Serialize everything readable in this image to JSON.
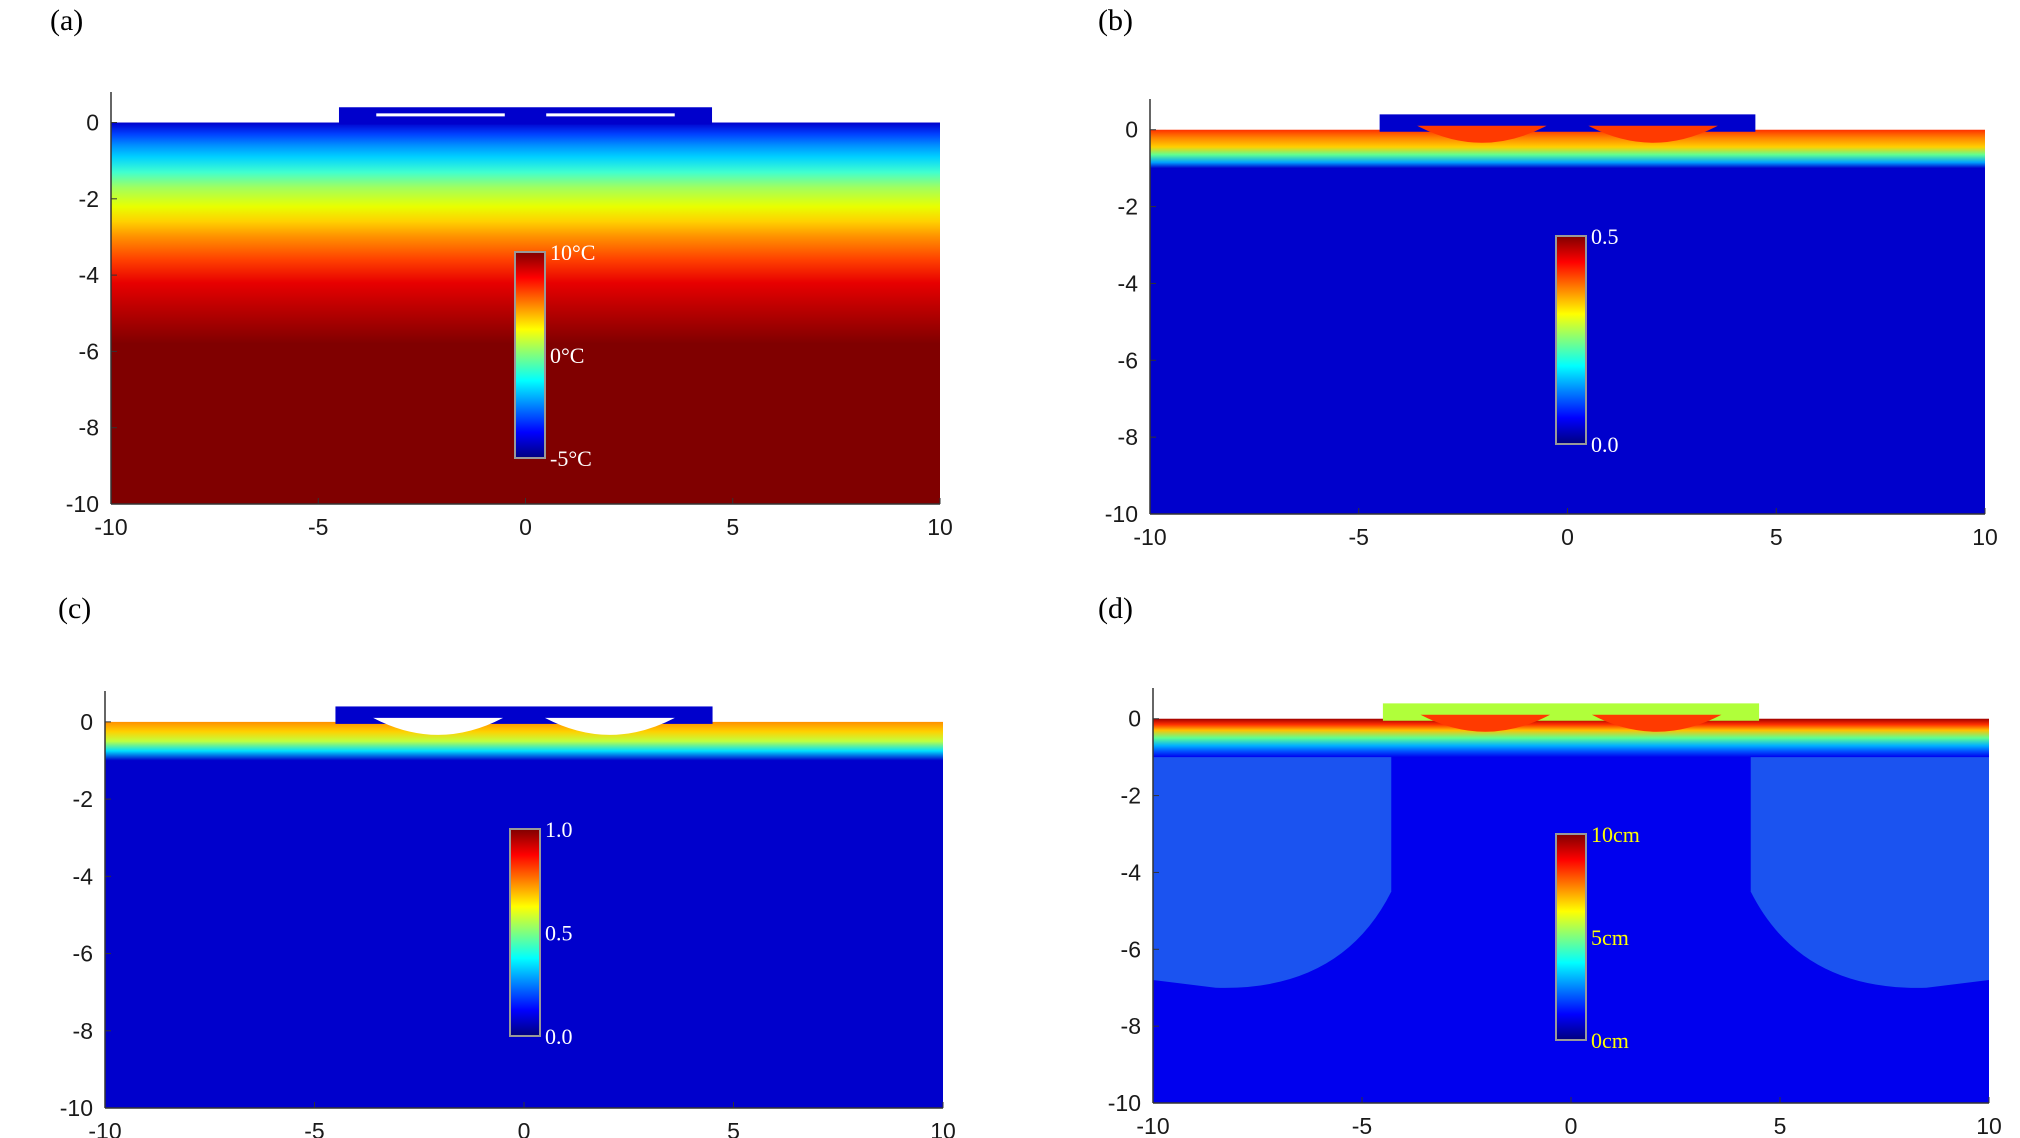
{
  "chart_data": [
    {
      "type": "heatmap",
      "panel_label": "(a)",
      "xlim": [
        -10,
        10
      ],
      "ylim": [
        -10,
        0.8
      ],
      "xticks": [
        "-10",
        "-5",
        "0",
        "5",
        "10"
      ],
      "yticks": [
        "0",
        "-2",
        "-4",
        "-6",
        "-8",
        "-10"
      ],
      "field_bands": [
        {
          "depth": 0.0,
          "color": "#0000cc"
        },
        {
          "depth": 0.3,
          "color": "#0040ff"
        },
        {
          "depth": 0.6,
          "color": "#0090ff"
        },
        {
          "depth": 0.9,
          "color": "#00d0ff"
        },
        {
          "depth": 1.3,
          "color": "#40ffd0"
        },
        {
          "depth": 1.7,
          "color": "#a0ff60"
        },
        {
          "depth": 2.2,
          "color": "#e8ff00"
        },
        {
          "depth": 2.6,
          "color": "#ffd000"
        },
        {
          "depth": 3.0,
          "color": "#ff9000"
        },
        {
          "depth": 3.6,
          "color": "#ff4000"
        },
        {
          "depth": 4.2,
          "color": "#e80000"
        },
        {
          "depth": 4.8,
          "color": "#c00000"
        },
        {
          "depth": 5.8,
          "color": "#800000"
        }
      ],
      "structure": {
        "x_range": [
          -4.5,
          4.5
        ],
        "top": 0.4,
        "color": "#0000cc",
        "openings": "lines"
      },
      "colorbar": {
        "labels": [
          "10°C",
          "0°C",
          "-5°C"
        ],
        "label_color": "#ffffff"
      }
    },
    {
      "type": "heatmap",
      "panel_label": "(b)",
      "xlim": [
        -10,
        10
      ],
      "ylim": [
        -10,
        0.8
      ],
      "xticks": [
        "-10",
        "-5",
        "0",
        "5",
        "10"
      ],
      "yticks": [
        "0",
        "-2",
        "-4",
        "-6",
        "-8",
        "-10"
      ],
      "field_bands": [
        {
          "depth": 0.0,
          "color": "#ff3000"
        },
        {
          "depth": 0.2,
          "color": "#ff8000"
        },
        {
          "depth": 0.45,
          "color": "#ffd000"
        },
        {
          "depth": 0.65,
          "color": "#60ff90"
        },
        {
          "depth": 0.85,
          "color": "#00a0ff"
        },
        {
          "depth": 1.0,
          "color": "#0000cc"
        }
      ],
      "structure": {
        "x_range": [
          -4.5,
          4.5
        ],
        "top": 0.4,
        "color": "#0000cc",
        "openings": "hot"
      },
      "colorbar": {
        "labels": [
          "0.5",
          "0.0"
        ],
        "label_color": "#ffffff"
      }
    },
    {
      "type": "heatmap",
      "panel_label": "(c)",
      "xlim": [
        -10,
        10
      ],
      "ylim": [
        -10,
        0.8
      ],
      "xticks": [
        "-10",
        "-5",
        "0",
        "5",
        "10"
      ],
      "yticks": [
        "0",
        "-2",
        "-4",
        "-6",
        "-8",
        "-10"
      ],
      "field_bands": [
        {
          "depth": 0.0,
          "color": "#ff9000"
        },
        {
          "depth": 0.25,
          "color": "#ffd000"
        },
        {
          "depth": 0.5,
          "color": "#c0ff40"
        },
        {
          "depth": 0.75,
          "color": "#00e0ff"
        },
        {
          "depth": 1.0,
          "color": "#0000cc"
        }
      ],
      "structure": {
        "x_range": [
          -4.5,
          4.5
        ],
        "top": 0.4,
        "color": "#0000cc",
        "openings": "white"
      },
      "colorbar": {
        "labels": [
          "1.0",
          "0.5",
          "0.0"
        ],
        "label_color": "#ffffff"
      }
    },
    {
      "type": "heatmap",
      "panel_label": "(d)",
      "xlim": [
        -10,
        10
      ],
      "ylim": [
        -10,
        0.8
      ],
      "xticks": [
        "-10",
        "-5",
        "0",
        "5",
        "10"
      ],
      "yticks": [
        "0",
        "-2",
        "-4",
        "-6",
        "-8",
        "-10"
      ],
      "field_bands": [
        {
          "depth": 0.0,
          "color": "#a00000"
        },
        {
          "depth": 0.15,
          "color": "#ff3000"
        },
        {
          "depth": 0.3,
          "color": "#ffc000"
        },
        {
          "depth": 0.5,
          "color": "#60ff90"
        },
        {
          "depth": 0.7,
          "color": "#00b0ff"
        },
        {
          "depth": 0.85,
          "color": "#0050ff"
        },
        {
          "depth": 1.0,
          "color": "#0000ee"
        }
      ],
      "structure": {
        "x_range": [
          -4.5,
          4.5
        ],
        "top": 0.4,
        "color": "#b0ff3a",
        "openings": "hot"
      },
      "colorbar": {
        "labels": [
          "10cm",
          "5cm",
          "0cm"
        ],
        "label_color": "#ffff00"
      }
    }
  ]
}
